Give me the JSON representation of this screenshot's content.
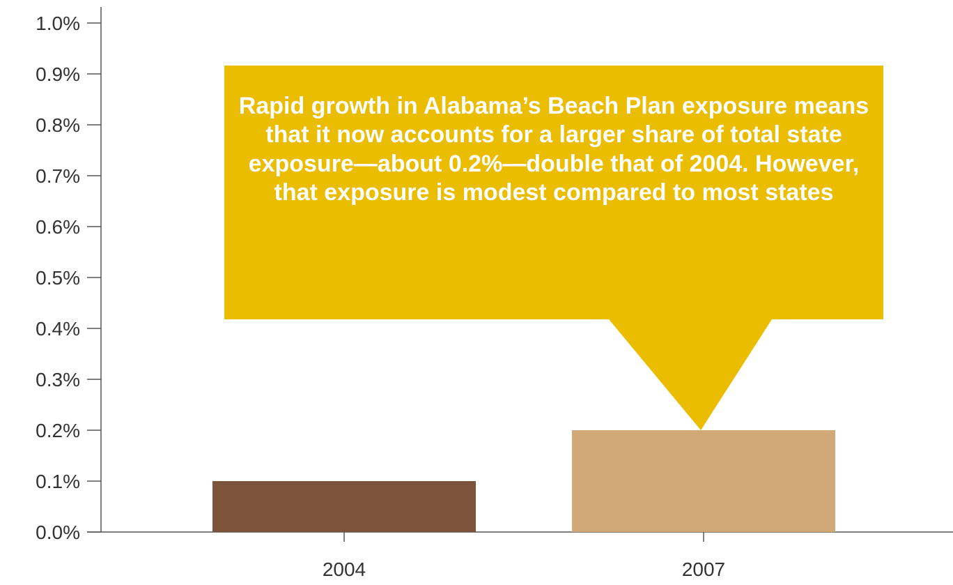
{
  "chart_data": {
    "type": "bar",
    "categories": [
      "2004",
      "2007"
    ],
    "values": [
      0.1,
      0.2
    ],
    "value_format": "%",
    "bar_colors": [
      "#7b543b",
      "#d1a977"
    ],
    "ylim": [
      0,
      1.0
    ],
    "yticks": [
      "0.0%",
      "0.1%",
      "0.2%",
      "0.3%",
      "0.4%",
      "0.5%",
      "0.6%",
      "0.7%",
      "0.8%",
      "0.9%",
      "1.0%"
    ],
    "title": "",
    "xlabel": "",
    "ylabel": "",
    "grid": false,
    "annotation": {
      "text": "Rapid growth in Alabama’s Beach Plan exposure means that it now accounts for a larger share of total state exposure—about 0.2%—double that of 2004.  However, that exposure is modest compared to most states",
      "points_to": "2007",
      "color": "#ebbd00"
    }
  }
}
